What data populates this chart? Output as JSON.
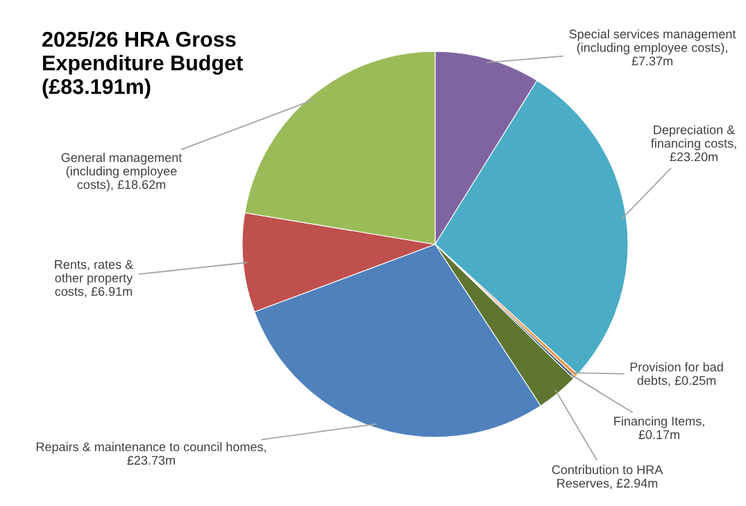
{
  "chart_data": {
    "type": "pie",
    "title": "2025/26 HRA Gross Expenditure Budget (£83.191m)",
    "categories": [
      "Special services management (including employee costs), £7.37m",
      "Depreciation & financing costs, £23.20m",
      "Provision for bad debts, £0.25m",
      "Financing Items, £0.17m",
      "Contribution to HRA Reserves, £2.94m",
      "Repairs & maintenance to council homes, £23.73m",
      "Rents, rates & other property costs, £6.91m",
      "General management (including employee costs), £18.62m"
    ],
    "values": [
      7.37,
      23.2,
      0.25,
      0.17,
      2.94,
      23.73,
      6.91,
      18.62
    ],
    "colors": [
      "#8064a2",
      "#4bacc6",
      "#f79646",
      "#2c4d75",
      "#5f7530",
      "#4f81bd",
      "#c0504d",
      "#9bbb59"
    ]
  }
}
